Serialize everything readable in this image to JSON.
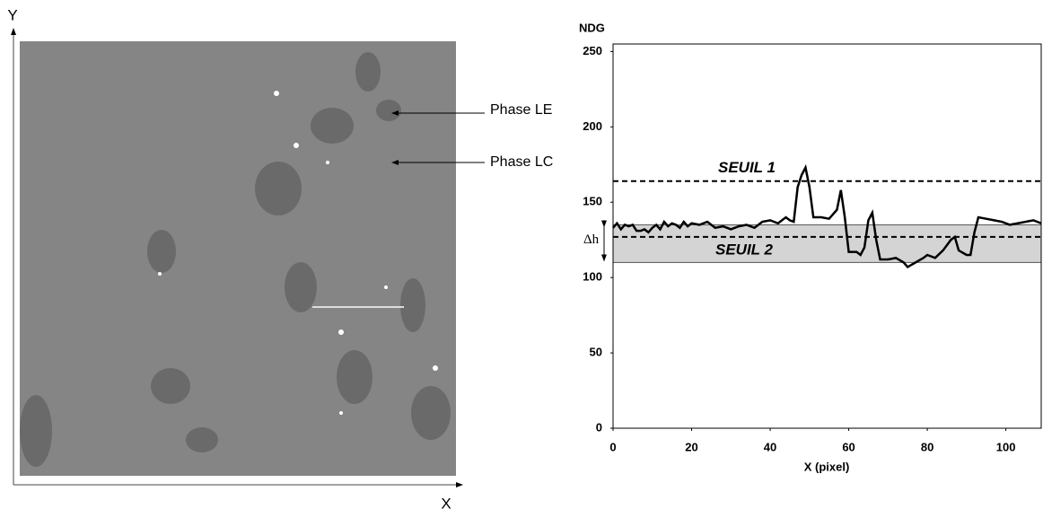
{
  "image": {
    "y_axis_label": "Y",
    "x_axis_label": "X",
    "annotations": [
      "Phase LE",
      "Phase LC"
    ]
  },
  "chart_data": {
    "type": "line",
    "y_label": "NDG",
    "x_label": "X (pixel)",
    "x": [
      0,
      1,
      2,
      3,
      4,
      5,
      6,
      7,
      8,
      9,
      10,
      11,
      12,
      13,
      14,
      15,
      16,
      17,
      18,
      19,
      20,
      22,
      24,
      26,
      28,
      30,
      32,
      34,
      36,
      38,
      40,
      42,
      44,
      45,
      46,
      47,
      48,
      49,
      50,
      51,
      53,
      55,
      57,
      58,
      59,
      60,
      62,
      63,
      64,
      65,
      66,
      67,
      68,
      70,
      72,
      74,
      75,
      77,
      79,
      80,
      82,
      84,
      86,
      87,
      88,
      90,
      91,
      92,
      93,
      95,
      97,
      99,
      101,
      103,
      105,
      107,
      109
    ],
    "values": [
      133,
      136,
      132,
      135,
      134,
      135,
      131,
      131,
      132,
      130,
      133,
      135,
      132,
      137,
      134,
      136,
      135,
      133,
      137,
      134,
      136,
      135,
      137,
      133,
      134,
      132,
      134,
      135,
      133,
      137,
      138,
      136,
      140,
      138,
      137,
      160,
      168,
      173,
      160,
      140,
      140,
      139,
      145,
      158,
      140,
      117,
      117,
      115,
      120,
      138,
      143,
      125,
      112,
      112,
      113,
      110,
      107,
      110,
      113,
      115,
      113,
      118,
      125,
      127,
      118,
      115,
      115,
      130,
      140,
      139,
      138,
      137,
      135,
      136,
      137,
      138,
      136
    ],
    "color": "#000000",
    "thresholds": [
      {
        "label": "SEUIL 1",
        "value": 164
      },
      {
        "label": "SEUIL 2",
        "value": 127
      }
    ],
    "band": [
      110,
      135
    ],
    "band_label": "Δh",
    "xlim": [
      0,
      109
    ],
    "ylim": [
      0,
      255
    ],
    "xticks": [
      0,
      20,
      40,
      60,
      80,
      100
    ],
    "yticks": [
      0,
      50,
      100,
      150,
      200,
      250
    ]
  }
}
